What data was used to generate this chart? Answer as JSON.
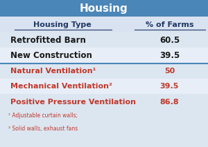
{
  "title": "Housing",
  "title_bg": "#4a86b8",
  "title_color": "#ffffff",
  "header_row": [
    "Housing Type",
    "% of Farms"
  ],
  "header_bg": "#d9e2f0",
  "header_text_color": "#1f3864",
  "rows_black": [
    [
      "Retrofitted Barn",
      "60.5"
    ],
    [
      "New Construction",
      "39.5"
    ]
  ],
  "rows_red": [
    [
      "Natural Ventilation¹",
      "50"
    ],
    [
      "Mechanical Ventilation²",
      "39.5"
    ],
    [
      "Positive Pressure Ventilation",
      "86.8"
    ]
  ],
  "row_bg_light": "#dce6f1",
  "row_bg_alt": "#e8eef7",
  "divider_color": "#4a86b8",
  "black_text": "#1a1a1a",
  "red_text": "#c0392b",
  "footnote1": "¹ Adjustable curtain walls;",
  "footnote2": "² Solid walls, exhaust fans",
  "footnote_color": "#c0392b",
  "table_bg": "#dce6f1"
}
